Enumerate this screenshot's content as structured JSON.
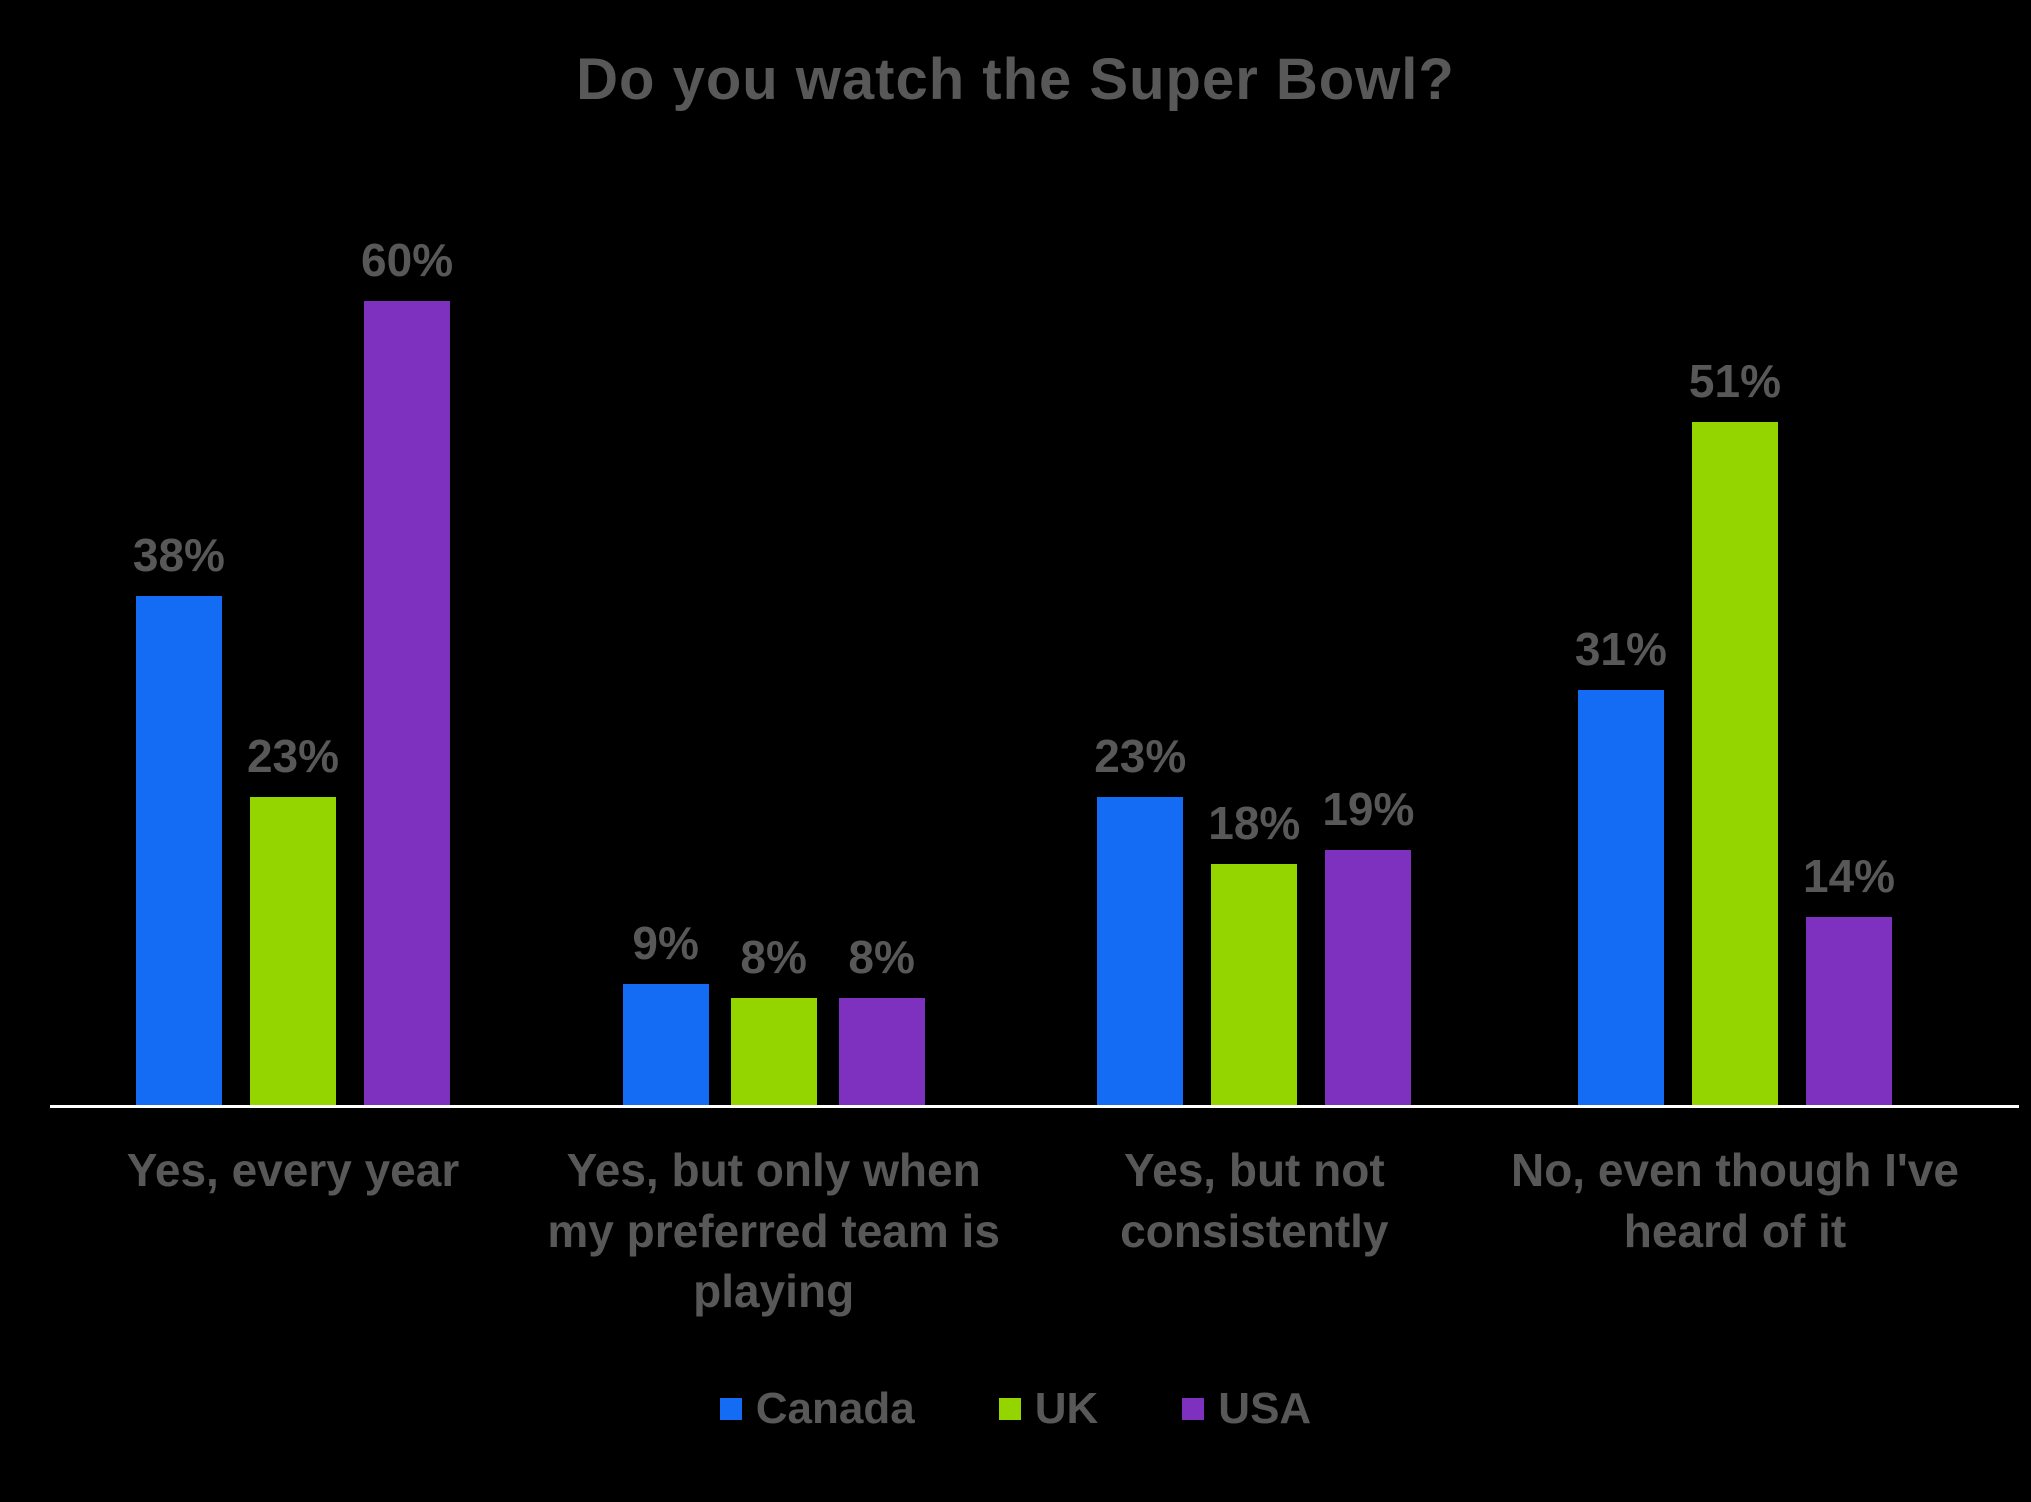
{
  "chart_data": {
    "type": "bar",
    "title": "Do you watch the Super Bowl?",
    "categories": [
      "Yes, every year",
      "Yes, but only when my preferred team is playing",
      "Yes, but not consistently",
      "No, even though I've heard of it"
    ],
    "series": [
      {
        "name": "Canada",
        "color": "#146BF4",
        "values": [
          38,
          9,
          23,
          31
        ]
      },
      {
        "name": "UK",
        "color": "#94D500",
        "values": [
          23,
          8,
          18,
          51
        ]
      },
      {
        "name": "USA",
        "color": "#7E30BE",
        "values": [
          60,
          8,
          19,
          14
        ]
      }
    ],
    "value_suffix": "%",
    "ylim": [
      0,
      65
    ],
    "grid": false,
    "legend_position": "bottom",
    "background_color": "#000000",
    "text_color": "#585858",
    "axis_line_color": "#FFFFFF"
  }
}
